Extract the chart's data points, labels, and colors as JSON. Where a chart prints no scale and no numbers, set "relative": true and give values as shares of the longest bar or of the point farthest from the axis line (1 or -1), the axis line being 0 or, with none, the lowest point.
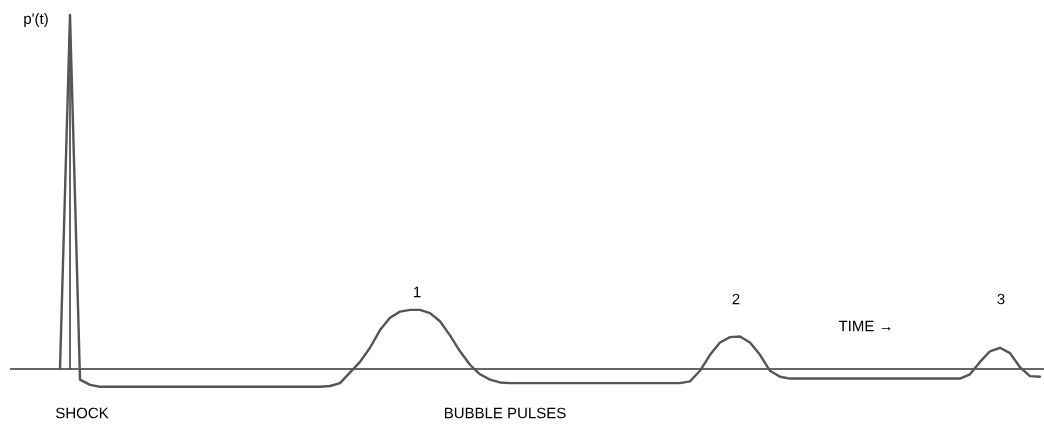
{
  "chart_data": {
    "type": "line",
    "relative": true,
    "ylabel": "p'(t)",
    "xlabel": "TIME →",
    "categories": [
      null,
      null,
      null,
      null,
      null,
      null,
      null,
      null,
      null,
      null,
      null,
      null,
      null,
      null,
      null,
      null,
      null,
      null,
      null,
      null,
      null,
      null,
      null,
      null,
      null,
      null,
      null,
      null,
      null,
      null,
      null,
      null,
      null,
      null,
      null,
      null,
      null,
      null,
      null,
      null,
      null,
      null,
      null,
      null,
      null,
      null,
      null,
      null,
      null,
      null,
      null,
      null,
      null,
      null,
      null,
      null,
      null,
      null,
      null,
      null,
      null,
      null,
      null,
      null,
      null,
      null,
      null,
      null,
      null,
      null,
      null,
      null,
      null,
      null,
      null,
      null,
      null,
      null,
      null,
      null,
      null,
      null,
      null,
      null,
      null,
      null,
      null,
      null,
      null,
      null,
      null,
      null,
      null,
      null,
      null,
      null,
      null,
      null,
      null
    ],
    "series": [
      {
        "color": "#555555",
        "values": [
          0,
          1,
          -0.03,
          -0.045,
          -0.05,
          -0.05,
          -0.05,
          -0.05,
          -0.05,
          -0.05,
          -0.05,
          -0.05,
          -0.05,
          -0.05,
          -0.05,
          -0.05,
          -0.05,
          -0.05,
          -0.05,
          -0.05,
          -0.05,
          -0.05,
          -0.05,
          -0.05,
          -0.05,
          -0.05,
          -0.05,
          -0.048,
          -0.04,
          -0.01,
          0.02,
          0.06,
          0.11,
          0.145,
          0.162,
          0.167,
          0.167,
          0.158,
          0.135,
          0.095,
          0.05,
          0.012,
          -0.015,
          -0.03,
          -0.038,
          -0.04,
          -0.04,
          -0.04,
          -0.04,
          -0.04,
          -0.04,
          -0.04,
          -0.04,
          -0.04,
          -0.04,
          -0.04,
          -0.04,
          -0.04,
          -0.04,
          -0.04,
          -0.04,
          -0.04,
          -0.04,
          -0.035,
          -0.005,
          0.04,
          0.075,
          0.09,
          0.092,
          0.075,
          0.04,
          -0.005,
          -0.022,
          -0.027,
          -0.027,
          -0.027,
          -0.027,
          -0.027,
          -0.027,
          -0.027,
          -0.027,
          -0.027,
          -0.027,
          -0.027,
          -0.027,
          -0.027,
          -0.027,
          -0.027,
          -0.027,
          -0.027,
          -0.027,
          -0.015,
          0.02,
          0.05,
          0.06,
          0.045,
          0.005,
          -0.02,
          -0.022
        ]
      }
    ],
    "annotations": [
      "1",
      "2",
      "3",
      "SHOCK",
      "BUBBLE PULSES"
    ]
  }
}
